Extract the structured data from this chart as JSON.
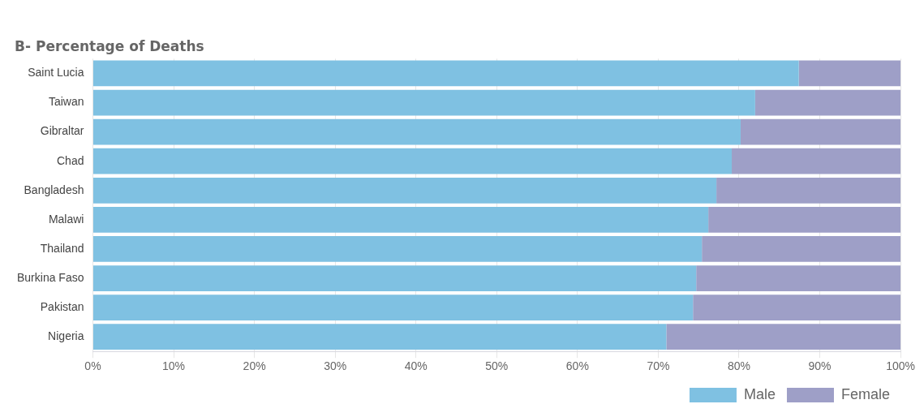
{
  "chart_data": {
    "type": "bar",
    "orientation": "horizontal",
    "stacked": true,
    "title": "B- Percentage of Deaths",
    "categories": [
      "Saint Lucia",
      "Taiwan",
      "Gibraltar",
      "Chad",
      "Bangladesh",
      "Malawi",
      "Thailand",
      "Burkina Faso",
      "Pakistan",
      "Nigeria"
    ],
    "series": [
      {
        "name": "Male",
        "color": "#7fc1e2",
        "values": [
          87.4,
          82.0,
          80.2,
          79.1,
          77.2,
          76.2,
          75.4,
          74.7,
          74.3,
          71.0
        ]
      },
      {
        "name": "Female",
        "color": "#9e9fc7",
        "values": [
          12.6,
          18.0,
          19.8,
          20.9,
          22.8,
          23.8,
          24.6,
          25.3,
          25.7,
          29.0
        ]
      }
    ],
    "xlim": [
      0,
      100
    ],
    "xticks": [
      {
        "value": 0,
        "label": "0%"
      },
      {
        "value": 10,
        "label": "10%"
      },
      {
        "value": 20,
        "label": "20%"
      },
      {
        "value": 30,
        "label": "30%"
      },
      {
        "value": 40,
        "label": "40%"
      },
      {
        "value": 50,
        "label": "50%"
      },
      {
        "value": 60,
        "label": "60%"
      },
      {
        "value": 70,
        "label": "70%"
      },
      {
        "value": 80,
        "label": "80%"
      },
      {
        "value": 90,
        "label": "90%"
      },
      {
        "value": 100,
        "label": "100%"
      }
    ],
    "grid": "x",
    "legend": "bottom right"
  }
}
